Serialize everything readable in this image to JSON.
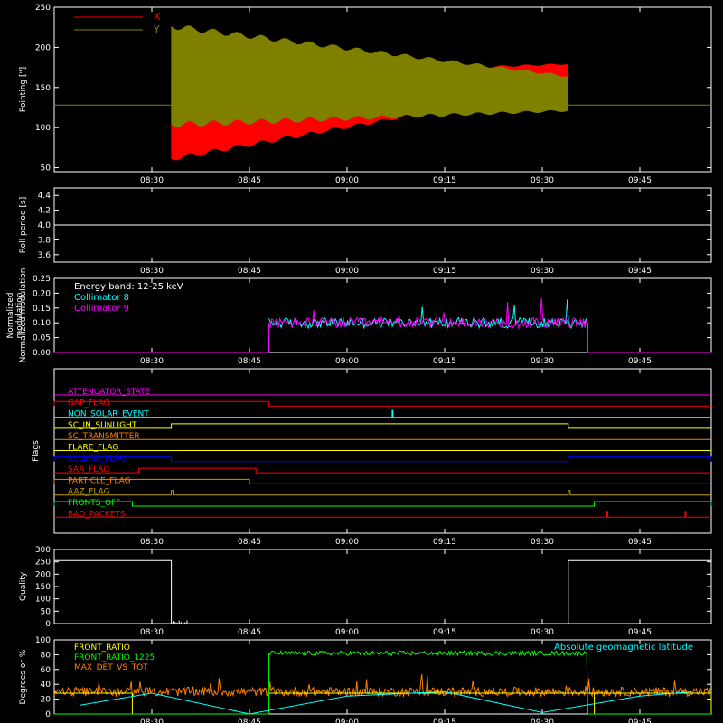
{
  "colors": {
    "background": "#000000",
    "axes": "#ffffff",
    "red": "#ff0000",
    "olive": "#808000",
    "cyan": "#00ffff",
    "magenta": "#ff00ff",
    "orange": "#ff8000",
    "yellow": "#ffff00",
    "green": "#00ff00",
    "blue": "#0000ff",
    "gold": "#c0a000",
    "gray": "#a0a0a0"
  },
  "chart_data": [
    {
      "type": "line",
      "ylabel": "Pointing [\"]",
      "ylim": [
        45,
        250
      ],
      "yticks": [
        50,
        100,
        150,
        200,
        250
      ],
      "xticks": [
        "08:30",
        "08:45",
        "09:00",
        "09:15",
        "09:30",
        "09:45"
      ],
      "series": [
        {
          "name": "X",
          "color": "red"
        },
        {
          "name": "Y",
          "color": "olive"
        }
      ],
      "legend": "top-left",
      "baseline": 128,
      "active_range": [
        "08:33",
        "09:34"
      ],
      "envelope_x": {
        "start": [
          58,
          165
        ],
        "end": [
          150,
          180
        ]
      },
      "envelope_y": {
        "start": [
          100,
          230
        ],
        "end": [
          120,
          165
        ]
      }
    },
    {
      "type": "line",
      "ylabel": "Roll period [s]",
      "ylim": [
        3.5,
        4.5
      ],
      "yticks": [
        3.6,
        3.8,
        4.0,
        4.2,
        4.4
      ],
      "xticks": [
        "08:30",
        "08:45",
        "09:00",
        "09:15",
        "09:30",
        "09:45"
      ],
      "series": [
        {
          "name": "",
          "value": 4.0,
          "color": "axes"
        }
      ]
    },
    {
      "type": "line",
      "ylabel": "Normalized modulation",
      "ylim": [
        0,
        0.25
      ],
      "yticks": [
        0.0,
        0.05,
        0.1,
        0.15,
        0.2,
        0.25
      ],
      "xticks": [
        "08:30",
        "08:45",
        "09:00",
        "09:15",
        "09:30",
        "09:45"
      ],
      "annotation": "Energy band: 12-25 keV",
      "series": [
        {
          "name": "Collimator 8",
          "color": "cyan",
          "level": 0.1
        },
        {
          "name": "Collimator 9",
          "color": "magenta",
          "level": 0.1
        }
      ],
      "active_range": [
        "08:48",
        "09:37"
      ]
    },
    {
      "type": "line",
      "ylabel": "Flags",
      "xticks": [
        "08:30",
        "08:45",
        "09:00",
        "09:15",
        "09:30",
        "09:45"
      ],
      "flags": [
        {
          "name": "ATTENUATOR_STATE",
          "color": "magenta",
          "high": []
        },
        {
          "name": "GAP_FLAG",
          "color": "red",
          "high": [
            [
              "start",
              "08:48"
            ]
          ]
        },
        {
          "name": "NON_SOLAR_EVENT",
          "color": "cyan",
          "high": [
            [
              "09:07",
              "09:07"
            ]
          ]
        },
        {
          "name": "SC_IN_SUNLIGHT",
          "color": "yellow",
          "high": [
            [
              "08:33",
              "09:34"
            ]
          ]
        },
        {
          "name": "SC_TRANSMITTER",
          "color": "orange",
          "high": []
        },
        {
          "name": "FLARE_FLAG",
          "color": "yellow",
          "high": []
        },
        {
          "name": "ECLIPSE_FLAG",
          "color": "blue",
          "high": [
            [
              "start",
              "08:33"
            ],
            [
              "09:34",
              "end"
            ]
          ]
        },
        {
          "name": "SAA_FLAG",
          "color": "red",
          "high": [
            [
              "08:28",
              "08:46"
            ]
          ]
        },
        {
          "name": "PARTICLE_FLAG",
          "color": "orange",
          "high": [
            [
              "start",
              "08:45"
            ]
          ]
        },
        {
          "name": "AAZ_FLAG",
          "color": "gold",
          "high": [
            [
              "08:33",
              "08:33"
            ],
            [
              "09:34",
              "09:34"
            ]
          ]
        },
        {
          "name": "FRONTS_OFF",
          "color": "green",
          "high": [
            [
              "start",
              "08:27"
            ],
            [
              "09:38",
              "end"
            ]
          ]
        },
        {
          "name": "BAD_PACKETS",
          "color": "red",
          "high": [
            [
              "09:40",
              "09:40"
            ],
            [
              "09:52",
              "09:52"
            ]
          ]
        }
      ]
    },
    {
      "type": "line",
      "ylabel": "Quality",
      "ylim": [
        0,
        300
      ],
      "yticks": [
        0,
        50,
        100,
        150,
        200,
        250,
        300
      ],
      "xticks": [
        "08:30",
        "08:45",
        "09:00",
        "09:15",
        "09:30",
        "09:45"
      ],
      "levels": [
        {
          "from": "start",
          "to": "08:33",
          "value": 255
        },
        {
          "from": "08:33",
          "to": "09:34",
          "value": 0
        },
        {
          "from": "09:34",
          "to": "end",
          "value": 255
        }
      ]
    },
    {
      "type": "line",
      "ylabel": "Degrees or %",
      "ylim": [
        0,
        100
      ],
      "yticks": [
        0,
        20,
        40,
        60,
        80,
        100
      ],
      "xticks": [
        "08:30",
        "08:45",
        "09:00",
        "09:15",
        "09:30",
        "09:45"
      ],
      "series": [
        {
          "name": "FRONT_RATIO",
          "color": "yellow"
        },
        {
          "name": "FRONT_RATIO_1225",
          "color": "green"
        },
        {
          "name": "MAX_DET_VS_TOT",
          "color": "orange"
        },
        {
          "name": "Absolute geomagnetic latitude",
          "color": "cyan"
        }
      ],
      "front_ratio": [
        {
          "from": "start",
          "to": "08:27",
          "value": 28
        },
        {
          "from": "08:48",
          "to": "09:38",
          "value": 28
        },
        {
          "from": "09:38",
          "to": "end",
          "value": 28
        }
      ],
      "front_ratio_1225": [
        {
          "from": "08:48",
          "to": "09:37",
          "value": 82
        }
      ],
      "max_det_vs_tot": {
        "level": 30,
        "noise": 6
      },
      "geomagnetic_latitude": {
        "t": [
          "08:19",
          "08:30",
          "08:45",
          "09:00",
          "09:15",
          "09:30",
          "09:45",
          "09:53"
        ],
        "v": [
          12,
          28,
          0,
          24,
          30,
          2,
          24,
          30
        ]
      }
    }
  ]
}
